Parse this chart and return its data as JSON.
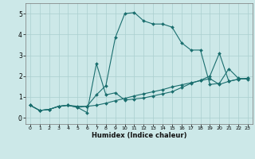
{
  "xlabel": "Humidex (Indice chaleur)",
  "bg_color": "#cce8e8",
  "grid_color": "#aacfcf",
  "line_color": "#1a6e6e",
  "xlim": [
    -0.5,
    23.5
  ],
  "ylim": [
    -0.3,
    5.5
  ],
  "xticks": [
    0,
    1,
    2,
    3,
    4,
    5,
    6,
    7,
    8,
    9,
    10,
    11,
    12,
    13,
    14,
    15,
    16,
    17,
    18,
    19,
    20,
    21,
    22,
    23
  ],
  "yticks": [
    0,
    1,
    2,
    3,
    4,
    5
  ],
  "curve1_x": [
    0,
    1,
    2,
    3,
    4,
    5,
    6,
    7,
    8,
    9,
    10,
    11,
    12,
    13,
    14,
    15,
    16,
    17,
    18,
    19,
    20,
    21,
    22,
    23
  ],
  "curve1_y": [
    0.6,
    0.35,
    0.4,
    0.55,
    0.6,
    0.55,
    0.55,
    1.1,
    1.55,
    3.85,
    5.0,
    5.05,
    4.65,
    4.5,
    4.5,
    4.35,
    3.6,
    3.25,
    3.25,
    1.6,
    1.65,
    2.35,
    1.9,
    1.85
  ],
  "curve2_x": [
    0,
    1,
    2,
    3,
    4,
    5,
    6,
    7,
    8,
    9,
    10,
    11,
    12,
    13,
    14,
    15,
    16,
    17,
    18,
    19,
    20,
    21,
    22,
    23
  ],
  "curve2_y": [
    0.6,
    0.35,
    0.4,
    0.55,
    0.6,
    0.5,
    0.25,
    2.6,
    1.1,
    1.2,
    0.85,
    0.9,
    0.95,
    1.05,
    1.15,
    1.25,
    1.45,
    1.65,
    1.8,
    2.0,
    3.1,
    1.75,
    1.85,
    1.9
  ],
  "curve3_x": [
    0,
    1,
    2,
    3,
    4,
    5,
    6,
    7,
    8,
    9,
    10,
    11,
    12,
    13,
    14,
    15,
    16,
    17,
    18,
    19,
    20,
    21,
    22,
    23
  ],
  "curve3_y": [
    0.6,
    0.35,
    0.4,
    0.55,
    0.6,
    0.5,
    0.55,
    0.6,
    0.7,
    0.82,
    0.93,
    1.05,
    1.15,
    1.25,
    1.35,
    1.48,
    1.58,
    1.68,
    1.78,
    1.88,
    1.6,
    1.75,
    1.85,
    1.9
  ]
}
